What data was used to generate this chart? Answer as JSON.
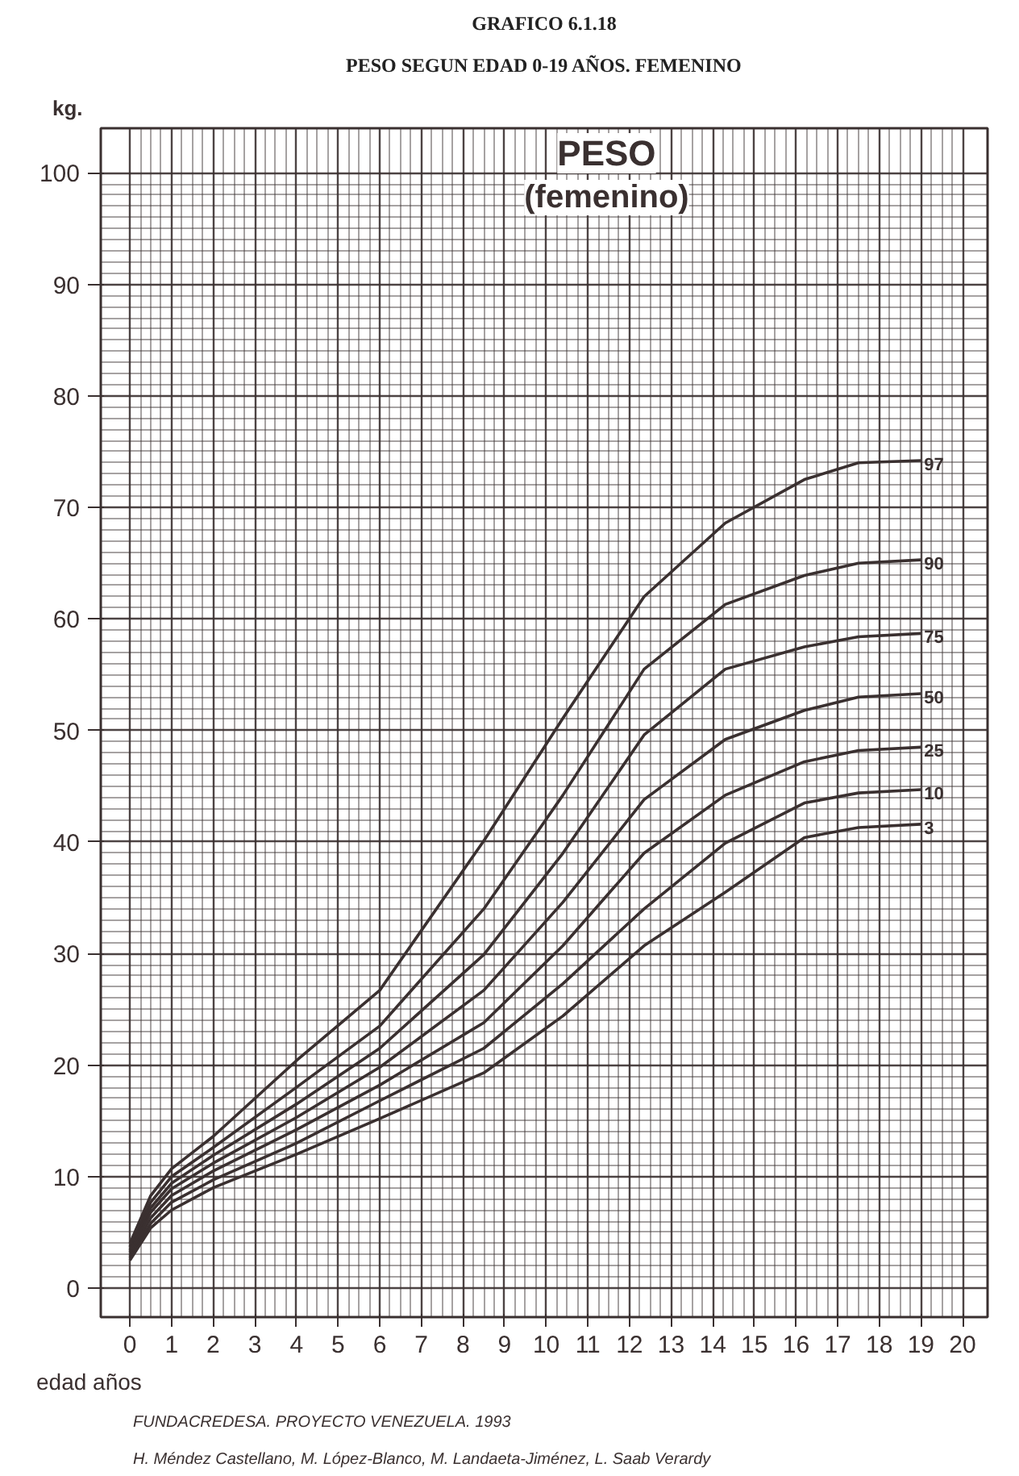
{
  "chart_data": {
    "type": "line",
    "title": "GRAFICO 6.1.18",
    "subtitle": "PESO SEGUN EDAD 0-19 AÑOS. FEMENINO",
    "xlabel": "edad años",
    "ylabel": "kg.",
    "annotations": [
      "PESO",
      "(femenino)",
      "FUNDACREDESA. PROYECTO VENEZUELA. 1993",
      "H. Méndez Castellano, M. López-Blanco, M. Landaeta-Jiménez, L. Saab Verardy"
    ],
    "x": [
      0,
      0.5,
      1,
      2,
      4,
      6,
      8.5,
      10.4,
      12.35,
      14.3,
      16.2,
      17.5,
      19
    ],
    "series": [
      {
        "name": "97",
        "color": "#3a3030",
        "values": [
          4.0,
          8.3,
          10.7,
          13.6,
          20.4,
          26.7,
          40.1,
          51.1,
          62.0,
          68.6,
          72.5,
          74.0,
          74.2
        ]
      },
      {
        "name": "90",
        "color": "#3a3030",
        "values": [
          3.7,
          7.7,
          10.0,
          12.6,
          18.0,
          23.5,
          34.0,
          44.2,
          55.5,
          61.3,
          63.9,
          65.0,
          65.3
        ]
      },
      {
        "name": "75",
        "color": "#3a3030",
        "values": [
          3.4,
          7.2,
          9.4,
          11.9,
          16.5,
          21.5,
          29.9,
          39.0,
          49.6,
          55.5,
          57.5,
          58.4,
          58.7
        ]
      },
      {
        "name": "50",
        "color": "#3a3030",
        "values": [
          3.2,
          6.8,
          8.9,
          11.2,
          15.3,
          19.8,
          26.7,
          34.6,
          43.8,
          49.2,
          51.8,
          53.0,
          53.3
        ]
      },
      {
        "name": "25",
        "color": "#3a3030",
        "values": [
          2.9,
          6.3,
          8.3,
          10.5,
          14.2,
          18.2,
          23.8,
          30.7,
          39.0,
          44.2,
          47.2,
          48.2,
          48.5
        ]
      },
      {
        "name": "10",
        "color": "#3a3030",
        "values": [
          2.7,
          5.8,
          7.7,
          9.7,
          13.0,
          16.8,
          21.5,
          27.3,
          34.0,
          39.9,
          43.5,
          44.4,
          44.7
        ]
      },
      {
        "name": "3",
        "color": "#3a3030",
        "values": [
          2.5,
          5.4,
          7.0,
          9.0,
          12.0,
          15.2,
          19.3,
          24.4,
          30.7,
          35.5,
          40.4,
          41.3,
          41.6
        ]
      }
    ],
    "xlim": [
      -0.7,
      20.6
    ],
    "ylim": [
      -2.6,
      104
    ],
    "xticks": [
      0,
      1,
      2,
      3,
      4,
      5,
      6,
      7,
      8,
      9,
      10,
      11,
      12,
      13,
      14,
      15,
      16,
      17,
      18,
      19,
      20
    ],
    "yticks": [
      0,
      10,
      20,
      30,
      40,
      50,
      60,
      70,
      80,
      90,
      100
    ],
    "grid": true,
    "marker": "none",
    "line_style": "solid"
  }
}
